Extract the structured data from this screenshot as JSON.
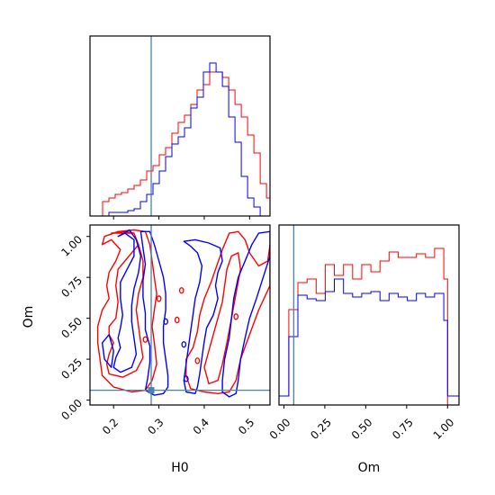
{
  "chart_data": {
    "type": "corner",
    "params": [
      "H0",
      "Om"
    ],
    "xlabel": "H0",
    "ylabel": "Om",
    "xlabel_om": "Om",
    "truth": {
      "H0": 0.283,
      "Om": 0.06
    },
    "truth_color": "#4682b4",
    "series_colors": [
      "#ff0000",
      "#0000ff"
    ],
    "ranges": {
      "H0": [
        0.148,
        0.545
      ],
      "Om": [
        -0.03,
        1.07
      ],
      "Om_hist": [
        -0.03,
        1.07
      ]
    },
    "ticks": {
      "H0": [
        0.2,
        0.3,
        0.4,
        0.5
      ],
      "H0_labels": [
        "0.2",
        "0.3",
        "0.4",
        "0.5"
      ],
      "Om": [
        0.0,
        0.25,
        0.5,
        0.75,
        1.0
      ],
      "Om_labels": [
        "0.00",
        "0.25",
        "0.50",
        "0.75",
        "1.00"
      ]
    },
    "H0_hist": {
      "edges": [
        0.148,
        0.1619,
        0.1758,
        0.1897,
        0.2036,
        0.2175,
        0.2314,
        0.2453,
        0.2592,
        0.2731,
        0.287,
        0.3009,
        0.3148,
        0.3287,
        0.3426,
        0.3565,
        0.3704,
        0.3843,
        0.3982,
        0.4121,
        0.426,
        0.4399,
        0.4538,
        0.4677,
        0.4816,
        0.4955,
        0.5094,
        0.5233,
        0.5372,
        0.545
      ],
      "series": [
        {
          "values": [
            0,
            0,
            0.08,
            0.1,
            0.12,
            0.13,
            0.15,
            0.17,
            0.2,
            0.25,
            0.28,
            0.34,
            0.38,
            0.46,
            0.52,
            0.56,
            0.62,
            0.7,
            0.73,
            0.8,
            0.8,
            0.77,
            0.7,
            0.62,
            0.55,
            0.45,
            0.35,
            0.18,
            0.1
          ]
        },
        {
          "values": [
            0,
            0,
            0,
            0.02,
            0.02,
            0.02,
            0.03,
            0.04,
            0.08,
            0.12,
            0.18,
            0.25,
            0.33,
            0.4,
            0.44,
            0.49,
            0.6,
            0.66,
            0.8,
            0.85,
            0.8,
            0.72,
            0.55,
            0.41,
            0.22,
            0.1,
            0.05,
            0,
            0
          ]
        }
      ]
    },
    "Om_hist": {
      "edges": [
        -0.03,
        0.03,
        0.0857,
        0.1414,
        0.1971,
        0.2528,
        0.3085,
        0.3642,
        0.4199,
        0.4756,
        0.5313,
        0.587,
        0.6427,
        0.6984,
        0.7541,
        0.8098,
        0.8655,
        0.9212,
        0.9769,
        1.0,
        1.07
      ],
      "series": [
        {
          "values": [
            0.05,
            0.53,
            0.68,
            0.7,
            0.62,
            0.78,
            0.72,
            0.78,
            0.7,
            0.78,
            0.74,
            0.8,
            0.85,
            0.82,
            0.82,
            0.84,
            0.82,
            0.87,
            0.7,
            0
          ],
          "note_hidden": ""
        },
        {
          "values": [
            0.05,
            0.38,
            0.61,
            0.59,
            0.58,
            0.63,
            0.7,
            0.62,
            0.6,
            0.62,
            0.63,
            0.58,
            0.62,
            0.6,
            0.58,
            0.62,
            0.6,
            0.62,
            0.47,
            0.05
          ]
        }
      ]
    },
    "contours": [
      {
        "series": 0,
        "points": [
          [
            0.195,
            1.02
          ],
          [
            0.225,
            1.03
          ],
          [
            0.245,
            1.02
          ],
          [
            0.255,
            0.95
          ],
          [
            0.24,
            0.9
          ],
          [
            0.225,
            0.85
          ],
          [
            0.21,
            0.8
          ],
          [
            0.205,
            0.7
          ],
          [
            0.21,
            0.6
          ],
          [
            0.205,
            0.5
          ],
          [
            0.19,
            0.45
          ],
          [
            0.19,
            0.4
          ],
          [
            0.2,
            0.35
          ],
          [
            0.19,
            0.28
          ],
          [
            0.185,
            0.22
          ],
          [
            0.19,
            0.16
          ],
          [
            0.22,
            0.14
          ],
          [
            0.25,
            0.18
          ],
          [
            0.265,
            0.26
          ],
          [
            0.26,
            0.35
          ],
          [
            0.255,
            0.45
          ],
          [
            0.25,
            0.55
          ],
          [
            0.255,
            0.65
          ],
          [
            0.265,
            0.75
          ],
          [
            0.265,
            0.85
          ],
          [
            0.255,
            0.95
          ],
          [
            0.245,
            1.02
          ]
        ]
      },
      {
        "series": 0,
        "points": [
          [
            0.175,
            0.95
          ],
          [
            0.195,
            0.98
          ],
          [
            0.215,
            0.92
          ],
          [
            0.205,
            0.85
          ],
          [
            0.19,
            0.78
          ],
          [
            0.185,
            0.7
          ],
          [
            0.19,
            0.62
          ],
          [
            0.175,
            0.55
          ],
          [
            0.165,
            0.45
          ],
          [
            0.165,
            0.35
          ],
          [
            0.17,
            0.25
          ],
          [
            0.175,
            0.15
          ],
          [
            0.2,
            0.08
          ],
          [
            0.24,
            0.05
          ],
          [
            0.27,
            0.06
          ],
          [
            0.285,
            0.12
          ],
          [
            0.295,
            0.22
          ],
          [
            0.29,
            0.35
          ],
          [
            0.285,
            0.45
          ],
          [
            0.29,
            0.55
          ],
          [
            0.295,
            0.65
          ],
          [
            0.29,
            0.75
          ],
          [
            0.285,
            0.85
          ],
          [
            0.28,
            0.95
          ],
          [
            0.27,
            1.03
          ],
          [
            0.245,
            1.04
          ],
          [
            0.21,
            1.03
          ],
          [
            0.18,
            1.0
          ],
          [
            0.175,
            0.95
          ]
        ]
      },
      {
        "series": 0,
        "points": [
          [
            0.425,
            0.8
          ],
          [
            0.44,
            0.92
          ],
          [
            0.455,
            1.02
          ],
          [
            0.475,
            1.03
          ],
          [
            0.49,
            0.98
          ],
          [
            0.5,
            0.9
          ],
          [
            0.52,
            0.82
          ],
          [
            0.54,
            0.85
          ],
          [
            0.545,
            0.95
          ],
          [
            0.545,
            0.7
          ],
          [
            0.52,
            0.55
          ],
          [
            0.5,
            0.4
          ],
          [
            0.48,
            0.25
          ],
          [
            0.47,
            0.12
          ],
          [
            0.455,
            0.05
          ],
          [
            0.43,
            0.04
          ],
          [
            0.4,
            0.05
          ],
          [
            0.37,
            0.07
          ],
          [
            0.36,
            0.15
          ],
          [
            0.36,
            0.25
          ],
          [
            0.375,
            0.32
          ],
          [
            0.385,
            0.42
          ],
          [
            0.39,
            0.52
          ],
          [
            0.4,
            0.62
          ],
          [
            0.415,
            0.72
          ],
          [
            0.425,
            0.8
          ]
        ]
      },
      {
        "series": 0,
        "points": [
          [
            0.4,
            0.2
          ],
          [
            0.41,
            0.3
          ],
          [
            0.42,
            0.4
          ],
          [
            0.43,
            0.5
          ],
          [
            0.44,
            0.6
          ],
          [
            0.445,
            0.7
          ],
          [
            0.45,
            0.8
          ],
          [
            0.46,
            0.88
          ],
          [
            0.475,
            0.9
          ],
          [
            0.48,
            0.8
          ],
          [
            0.47,
            0.65
          ],
          [
            0.46,
            0.5
          ],
          [
            0.45,
            0.35
          ],
          [
            0.44,
            0.22
          ],
          [
            0.43,
            0.12
          ],
          [
            0.41,
            0.1
          ],
          [
            0.4,
            0.2
          ]
        ]
      },
      {
        "series": 1,
        "points": [
          [
            0.21,
            1.0
          ],
          [
            0.225,
            1.02
          ],
          [
            0.245,
            0.98
          ],
          [
            0.245,
            0.88
          ],
          [
            0.23,
            0.8
          ],
          [
            0.215,
            0.72
          ],
          [
            0.215,
            0.62
          ],
          [
            0.22,
            0.52
          ],
          [
            0.215,
            0.44
          ],
          [
            0.21,
            0.38
          ],
          [
            0.215,
            0.32
          ],
          [
            0.205,
            0.26
          ],
          [
            0.2,
            0.2
          ],
          [
            0.215,
            0.17
          ],
          [
            0.24,
            0.2
          ],
          [
            0.25,
            0.28
          ],
          [
            0.245,
            0.38
          ],
          [
            0.24,
            0.48
          ],
          [
            0.24,
            0.58
          ],
          [
            0.245,
            0.68
          ],
          [
            0.255,
            0.78
          ],
          [
            0.26,
            0.88
          ],
          [
            0.25,
            0.98
          ],
          [
            0.235,
            1.04
          ],
          [
            0.21,
            1.0
          ]
        ]
      },
      {
        "series": 1,
        "points": [
          [
            0.195,
            0.2
          ],
          [
            0.2,
            0.3
          ],
          [
            0.19,
            0.4
          ],
          [
            0.175,
            0.35
          ],
          [
            0.18,
            0.25
          ],
          [
            0.195,
            0.2
          ]
        ]
      },
      {
        "series": 1,
        "points": [
          [
            0.26,
            1.03
          ],
          [
            0.265,
            0.93
          ],
          [
            0.27,
            0.83
          ],
          [
            0.265,
            0.73
          ],
          [
            0.265,
            0.63
          ],
          [
            0.27,
            0.53
          ],
          [
            0.27,
            0.43
          ],
          [
            0.28,
            0.33
          ],
          [
            0.28,
            0.23
          ],
          [
            0.275,
            0.13
          ],
          [
            0.27,
            0.06
          ],
          [
            0.29,
            0.03
          ],
          [
            0.31,
            0.04
          ],
          [
            0.32,
            0.08
          ],
          [
            0.32,
            0.15
          ],
          [
            0.315,
            0.25
          ],
          [
            0.31,
            0.35
          ],
          [
            0.31,
            0.45
          ],
          [
            0.315,
            0.55
          ],
          [
            0.315,
            0.65
          ],
          [
            0.31,
            0.75
          ],
          [
            0.3,
            0.85
          ],
          [
            0.29,
            0.95
          ],
          [
            0.28,
            1.03
          ],
          [
            0.26,
            1.03
          ]
        ]
      },
      {
        "series": 1,
        "points": [
          [
            0.355,
            0.97
          ],
          [
            0.38,
            0.98
          ],
          [
            0.41,
            0.96
          ],
          [
            0.435,
            0.93
          ],
          [
            0.44,
            0.85
          ],
          [
            0.43,
            0.78
          ],
          [
            0.425,
            0.7
          ],
          [
            0.43,
            0.62
          ],
          [
            0.42,
            0.52
          ],
          [
            0.405,
            0.44
          ],
          [
            0.4,
            0.36
          ],
          [
            0.395,
            0.26
          ],
          [
            0.39,
            0.16
          ],
          [
            0.385,
            0.08
          ],
          [
            0.38,
            0.04
          ],
          [
            0.36,
            0.05
          ],
          [
            0.355,
            0.12
          ],
          [
            0.36,
            0.22
          ],
          [
            0.365,
            0.32
          ],
          [
            0.37,
            0.42
          ],
          [
            0.375,
            0.52
          ],
          [
            0.38,
            0.62
          ],
          [
            0.39,
            0.72
          ],
          [
            0.395,
            0.82
          ],
          [
            0.385,
            0.9
          ],
          [
            0.37,
            0.94
          ],
          [
            0.355,
            0.97
          ]
        ]
      },
      {
        "series": 1,
        "points": [
          [
            0.44,
            0.12
          ],
          [
            0.445,
            0.25
          ],
          [
            0.455,
            0.38
          ],
          [
            0.46,
            0.5
          ],
          [
            0.465,
            0.62
          ],
          [
            0.475,
            0.75
          ],
          [
            0.49,
            0.85
          ],
          [
            0.505,
            0.95
          ],
          [
            0.52,
            1.02
          ],
          [
            0.545,
            1.03
          ],
          [
            0.545,
            0.88
          ],
          [
            0.53,
            0.75
          ],
          [
            0.515,
            0.62
          ],
          [
            0.5,
            0.5
          ],
          [
            0.49,
            0.38
          ],
          [
            0.48,
            0.25
          ],
          [
            0.475,
            0.12
          ],
          [
            0.47,
            0.04
          ],
          [
            0.455,
            0.02
          ],
          [
            0.44,
            0.05
          ],
          [
            0.44,
            0.12
          ]
        ]
      }
    ],
    "blobs": [
      {
        "series": 0,
        "x": 0.3,
        "y": 0.62
      },
      {
        "series": 0,
        "x": 0.35,
        "y": 0.67
      },
      {
        "series": 0,
        "x": 0.34,
        "y": 0.49
      },
      {
        "series": 0,
        "x": 0.27,
        "y": 0.37
      },
      {
        "series": 0,
        "x": 0.385,
        "y": 0.24
      },
      {
        "series": 0,
        "x": 0.47,
        "y": 0.51
      },
      {
        "series": 1,
        "x": 0.355,
        "y": 0.34
      },
      {
        "series": 1,
        "x": 0.36,
        "y": 0.13
      },
      {
        "series": 1,
        "x": 0.315,
        "y": 0.48
      }
    ]
  }
}
